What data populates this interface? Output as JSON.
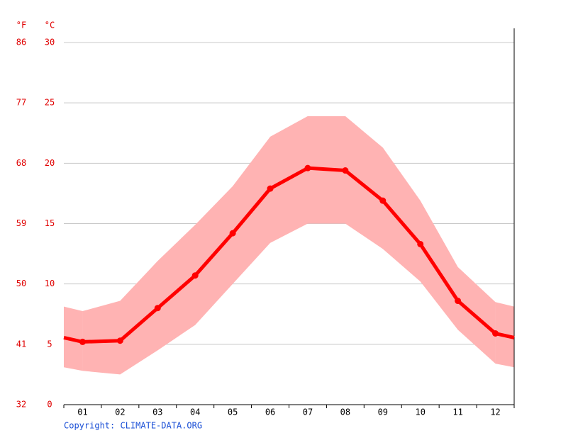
{
  "chart_data": {
    "type": "line",
    "categories": [
      "01",
      "02",
      "03",
      "04",
      "05",
      "06",
      "07",
      "08",
      "09",
      "10",
      "11",
      "12"
    ],
    "series": [
      {
        "color": "#ff0000",
        "values": [
          5.2,
          5.3,
          8.0,
          10.7,
          14.2,
          17.9,
          19.6,
          19.4,
          16.9,
          13.3,
          8.6,
          5.9
        ]
      }
    ],
    "band": {
      "color": "#ffb3b3",
      "high": [
        7.75,
        8.6,
        11.9,
        14.9,
        18.1,
        22.2,
        23.9,
        23.9,
        21.3,
        16.9,
        11.4,
        8.5
      ],
      "low": [
        2.8,
        2.5,
        4.5,
        6.6,
        10.0,
        13.4,
        15.0,
        15.0,
        12.9,
        10.2,
        6.2,
        3.4
      ]
    },
    "ylabel": "°C",
    "ylim": [
      0,
      30
    ],
    "yticks": [
      0,
      5,
      10,
      15,
      20,
      25,
      30
    ],
    "y2label": "°F",
    "y2lim": [
      32,
      86
    ],
    "y2ticks": [
      32,
      41,
      50,
      59,
      68,
      77,
      86
    ],
    "grid": true,
    "copyright": "Copyright: CLIMATE-DATA.ORG"
  }
}
